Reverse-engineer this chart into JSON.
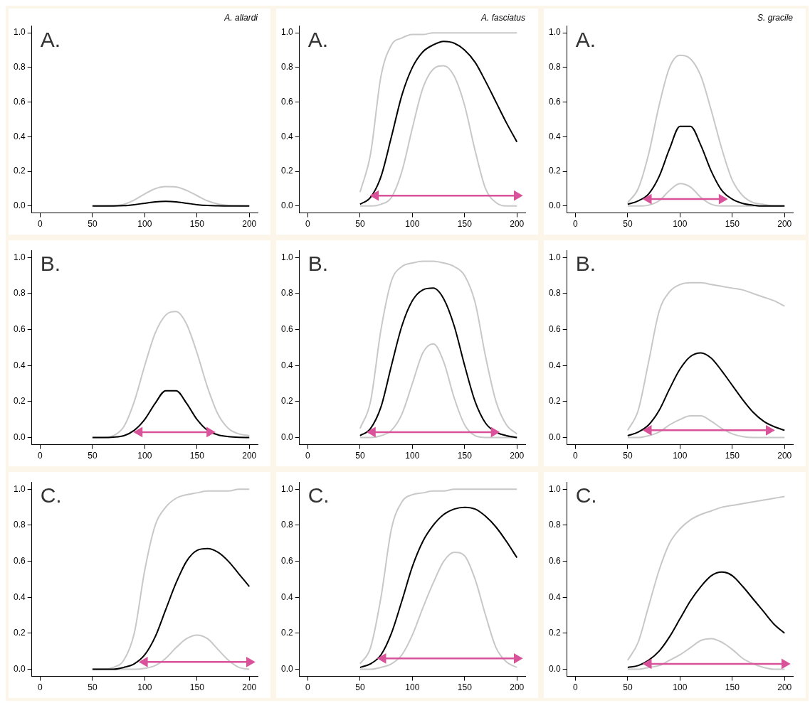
{
  "chart_data": [
    {
      "type": "line",
      "title": "A. allardi",
      "annotations": [
        "A."
      ],
      "x": [
        50,
        60,
        70,
        80,
        90,
        100,
        110,
        120,
        130,
        140,
        150,
        160,
        170,
        180,
        190,
        200
      ],
      "xlim": [
        -8,
        208
      ],
      "ylim": [
        -0.04,
        1.04
      ],
      "xticks": [
        0,
        50,
        100,
        150,
        200
      ],
      "yticks": [
        {
          "value": 0,
          "label": "0.0"
        },
        {
          "value": 0.2,
          "label": "0.2"
        },
        {
          "value": 0.4,
          "label": "0.4"
        },
        {
          "value": 0.6,
          "label": "0.6"
        },
        {
          "value": 0.8,
          "label": "0.8"
        },
        {
          "value": 1,
          "label": "1.0"
        }
      ],
      "marker": "none",
      "series": [
        {
          "color": "#c8c8c8",
          "values": [
            0,
            0,
            0.002,
            0.01,
            0.035,
            0.07,
            0.1,
            0.112,
            0.11,
            0.09,
            0.06,
            0.03,
            0.012,
            0.004,
            0.001,
            0
          ]
        },
        {
          "color": "#000000",
          "values": [
            0,
            0,
            0,
            0.002,
            0.008,
            0.016,
            0.024,
            0.027,
            0.024,
            0.016,
            0.008,
            0.003,
            0.001,
            0,
            0,
            0
          ]
        }
      ]
    },
    {
      "type": "line",
      "title": "A. fasciatus",
      "annotations": [
        "A."
      ],
      "x": [
        50,
        60,
        70,
        80,
        90,
        100,
        110,
        120,
        130,
        140,
        150,
        160,
        170,
        180,
        190,
        200
      ],
      "xlim": [
        -8,
        208
      ],
      "ylim": [
        -0.04,
        1.04
      ],
      "xticks": [
        0,
        50,
        100,
        150,
        200
      ],
      "yticks": [
        {
          "value": 0,
          "label": "0.0"
        },
        {
          "value": 0.2,
          "label": "0.2"
        },
        {
          "value": 0.4,
          "label": "0.4"
        },
        {
          "value": 0.6,
          "label": "0.6"
        },
        {
          "value": 0.8,
          "label": "0.8"
        },
        {
          "value": 1,
          "label": "1.0"
        }
      ],
      "marker": "none",
      "series": [
        {
          "color": "#c8c8c8",
          "values": [
            0.08,
            0.3,
            0.75,
            0.93,
            0.97,
            0.99,
            0.99,
            1,
            1,
            1,
            1,
            1,
            1,
            1,
            1,
            1
          ]
        },
        {
          "color": "#c8c8c8",
          "values": [
            0,
            0,
            0.01,
            0.05,
            0.2,
            0.45,
            0.68,
            0.79,
            0.81,
            0.75,
            0.58,
            0.32,
            0.1,
            0.02,
            0,
            0
          ]
        },
        {
          "color": "#000000",
          "values": [
            0.01,
            0.05,
            0.17,
            0.4,
            0.64,
            0.8,
            0.89,
            0.93,
            0.95,
            0.94,
            0.9,
            0.83,
            0.72,
            0.6,
            0.48,
            0.37
          ]
        },
        {
          "color": "#d9539a",
          "marker": "triangle",
          "x": [
            65,
            200
          ],
          "values": [
            0.06,
            0.06
          ]
        }
      ]
    },
    {
      "type": "line",
      "title": "S. gracile",
      "annotations": [
        "A."
      ],
      "x": [
        50,
        60,
        70,
        80,
        90,
        100,
        110,
        120,
        130,
        140,
        150,
        160,
        170,
        180,
        190,
        200
      ],
      "xlim": [
        -8,
        208
      ],
      "ylim": [
        -0.04,
        1.04
      ],
      "xticks": [
        0,
        50,
        100,
        150,
        200
      ],
      "yticks": [
        {
          "value": 0,
          "label": "0.0"
        },
        {
          "value": 0.2,
          "label": "0.2"
        },
        {
          "value": 0.4,
          "label": "0.4"
        },
        {
          "value": 0.6,
          "label": "0.6"
        },
        {
          "value": 0.8,
          "label": "0.8"
        },
        {
          "value": 1,
          "label": "1.0"
        }
      ],
      "marker": "none",
      "series": [
        {
          "color": "#c8c8c8",
          "values": [
            0.02,
            0.1,
            0.3,
            0.58,
            0.8,
            0.87,
            0.85,
            0.75,
            0.55,
            0.33,
            0.15,
            0.06,
            0.02,
            0.01,
            0,
            0
          ]
        },
        {
          "color": "#c8c8c8",
          "values": [
            0,
            0,
            0.005,
            0.03,
            0.09,
            0.13,
            0.11,
            0.05,
            0.01,
            0,
            0,
            0,
            0,
            0,
            0,
            0
          ]
        },
        {
          "color": "#000000",
          "values": [
            0.01,
            0.03,
            0.07,
            0.17,
            0.33,
            0.46,
            0.46,
            0.35,
            0.2,
            0.09,
            0.04,
            0.015,
            0.005,
            0,
            0,
            0
          ]
        },
        {
          "color": "#d9539a",
          "marker": "triangle",
          "x": [
            70,
            140
          ],
          "values": [
            0.04,
            0.04
          ]
        }
      ]
    },
    {
      "type": "line",
      "annotations": [
        "B."
      ],
      "x": [
        50,
        60,
        70,
        80,
        90,
        100,
        110,
        120,
        130,
        140,
        150,
        160,
        170,
        180,
        190,
        200
      ],
      "xlim": [
        -8,
        208
      ],
      "ylim": [
        -0.04,
        1.04
      ],
      "xticks": [
        0,
        50,
        100,
        150,
        200
      ],
      "yticks": [
        {
          "value": 0,
          "label": "0.0"
        },
        {
          "value": 0.2,
          "label": "0.2"
        },
        {
          "value": 0.4,
          "label": "0.4"
        },
        {
          "value": 0.6,
          "label": "0.6"
        },
        {
          "value": 0.8,
          "label": "0.8"
        },
        {
          "value": 1,
          "label": "1.0"
        }
      ],
      "marker": "none",
      "series": [
        {
          "color": "#c8c8c8",
          "values": [
            0,
            0,
            0.01,
            0.06,
            0.2,
            0.4,
            0.58,
            0.68,
            0.7,
            0.63,
            0.47,
            0.28,
            0.13,
            0.05,
            0.02,
            0.01
          ]
        },
        {
          "color": "#000000",
          "values": [
            0,
            0,
            0.002,
            0.01,
            0.04,
            0.1,
            0.19,
            0.26,
            0.26,
            0.19,
            0.1,
            0.04,
            0.015,
            0.005,
            0.001,
            0
          ]
        },
        {
          "color": "#d9539a",
          "marker": "triangle",
          "x": [
            95,
            162
          ],
          "values": [
            0.03,
            0.03
          ]
        }
      ]
    },
    {
      "type": "line",
      "annotations": [
        "B."
      ],
      "x": [
        50,
        60,
        70,
        80,
        90,
        100,
        110,
        120,
        130,
        140,
        150,
        160,
        170,
        180,
        190,
        200
      ],
      "xlim": [
        -8,
        208
      ],
      "ylim": [
        -0.04,
        1.04
      ],
      "xticks": [
        0,
        50,
        100,
        150,
        200
      ],
      "yticks": [
        {
          "value": 0,
          "label": "0.0"
        },
        {
          "value": 0.2,
          "label": "0.2"
        },
        {
          "value": 0.4,
          "label": "0.4"
        },
        {
          "value": 0.6,
          "label": "0.6"
        },
        {
          "value": 0.8,
          "label": "0.8"
        },
        {
          "value": 1,
          "label": "1.0"
        }
      ],
      "marker": "none",
      "series": [
        {
          "color": "#c8c8c8",
          "values": [
            0.05,
            0.2,
            0.6,
            0.87,
            0.95,
            0.97,
            0.98,
            0.98,
            0.97,
            0.95,
            0.9,
            0.75,
            0.45,
            0.2,
            0.07,
            0.02
          ]
        },
        {
          "color": "#c8c8c8",
          "values": [
            0,
            0,
            0.01,
            0.04,
            0.13,
            0.3,
            0.47,
            0.52,
            0.42,
            0.22,
            0.07,
            0.01,
            0,
            0,
            0,
            0
          ]
        },
        {
          "color": "#000000",
          "values": [
            0.01,
            0.05,
            0.17,
            0.4,
            0.62,
            0.76,
            0.82,
            0.83,
            0.77,
            0.62,
            0.4,
            0.2,
            0.08,
            0.03,
            0.01,
            0
          ]
        },
        {
          "color": "#d9539a",
          "marker": "triangle",
          "x": [
            62,
            178
          ],
          "values": [
            0.03,
            0.03
          ]
        }
      ]
    },
    {
      "type": "line",
      "annotations": [
        "B."
      ],
      "x": [
        50,
        60,
        70,
        80,
        90,
        100,
        110,
        120,
        130,
        140,
        150,
        160,
        170,
        180,
        190,
        200
      ],
      "xlim": [
        -8,
        208
      ],
      "ylim": [
        -0.04,
        1.04
      ],
      "xticks": [
        0,
        50,
        100,
        150,
        200
      ],
      "yticks": [
        {
          "value": 0,
          "label": "0.0"
        },
        {
          "value": 0.2,
          "label": "0.2"
        },
        {
          "value": 0.4,
          "label": "0.4"
        },
        {
          "value": 0.6,
          "label": "0.6"
        },
        {
          "value": 0.8,
          "label": "0.8"
        },
        {
          "value": 1,
          "label": "1.0"
        }
      ],
      "marker": "none",
      "series": [
        {
          "color": "#c8c8c8",
          "values": [
            0.04,
            0.15,
            0.42,
            0.7,
            0.81,
            0.85,
            0.86,
            0.86,
            0.85,
            0.84,
            0.83,
            0.82,
            0.8,
            0.78,
            0.76,
            0.73
          ]
        },
        {
          "color": "#c8c8c8",
          "values": [
            0,
            0,
            0.01,
            0.03,
            0.07,
            0.1,
            0.12,
            0.12,
            0.09,
            0.05,
            0.02,
            0.005,
            0,
            0,
            0,
            0
          ]
        },
        {
          "color": "#000000",
          "values": [
            0.01,
            0.03,
            0.07,
            0.15,
            0.27,
            0.38,
            0.45,
            0.47,
            0.44,
            0.37,
            0.29,
            0.21,
            0.14,
            0.09,
            0.06,
            0.04
          ]
        },
        {
          "color": "#d9539a",
          "marker": "triangle",
          "x": [
            70,
            185
          ],
          "values": [
            0.04,
            0.04
          ]
        }
      ]
    },
    {
      "type": "line",
      "annotations": [
        "C."
      ],
      "x": [
        50,
        60,
        70,
        80,
        90,
        100,
        110,
        120,
        130,
        140,
        150,
        160,
        170,
        180,
        190,
        200
      ],
      "xlim": [
        -8,
        208
      ],
      "ylim": [
        -0.04,
        1.04
      ],
      "xticks": [
        0,
        50,
        100,
        150,
        200
      ],
      "yticks": [
        {
          "value": 0,
          "label": "0.0"
        },
        {
          "value": 0.2,
          "label": "0.2"
        },
        {
          "value": 0.4,
          "label": "0.4"
        },
        {
          "value": 0.6,
          "label": "0.6"
        },
        {
          "value": 0.8,
          "label": "0.8"
        },
        {
          "value": 1,
          "label": "1.0"
        }
      ],
      "marker": "none",
      "series": [
        {
          "color": "#c8c8c8",
          "values": [
            0,
            0,
            0.01,
            0.05,
            0.2,
            0.55,
            0.8,
            0.9,
            0.95,
            0.97,
            0.98,
            0.99,
            0.99,
            0.99,
            1,
            1
          ]
        },
        {
          "color": "#c8c8c8",
          "values": [
            0,
            0,
            0,
            0,
            0,
            0.005,
            0.02,
            0.06,
            0.12,
            0.17,
            0.19,
            0.17,
            0.11,
            0.05,
            0.01,
            0
          ]
        },
        {
          "color": "#000000",
          "values": [
            0,
            0,
            0,
            0.01,
            0.03,
            0.08,
            0.18,
            0.33,
            0.48,
            0.6,
            0.66,
            0.67,
            0.65,
            0.6,
            0.53,
            0.46
          ]
        },
        {
          "color": "#d9539a",
          "marker": "triangle",
          "x": [
            100,
            200
          ],
          "values": [
            0.04,
            0.04
          ]
        }
      ]
    },
    {
      "type": "line",
      "annotations": [
        "C."
      ],
      "x": [
        50,
        60,
        70,
        80,
        90,
        100,
        110,
        120,
        130,
        140,
        150,
        160,
        170,
        180,
        190,
        200
      ],
      "xlim": [
        -8,
        208
      ],
      "ylim": [
        -0.04,
        1.04
      ],
      "xticks": [
        0,
        50,
        100,
        150,
        200
      ],
      "yticks": [
        {
          "value": 0,
          "label": "0.0"
        },
        {
          "value": 0.2,
          "label": "0.2"
        },
        {
          "value": 0.4,
          "label": "0.4"
        },
        {
          "value": 0.6,
          "label": "0.6"
        },
        {
          "value": 0.8,
          "label": "0.8"
        },
        {
          "value": 1,
          "label": "1.0"
        }
      ],
      "marker": "none",
      "series": [
        {
          "color": "#c8c8c8",
          "values": [
            0.03,
            0.12,
            0.4,
            0.78,
            0.93,
            0.97,
            0.98,
            0.99,
            0.99,
            1,
            1,
            1,
            1,
            1,
            1,
            1
          ]
        },
        {
          "color": "#c8c8c8",
          "values": [
            0,
            0,
            0.01,
            0.03,
            0.08,
            0.19,
            0.34,
            0.48,
            0.6,
            0.65,
            0.63,
            0.5,
            0.3,
            0.12,
            0.04,
            0.01
          ]
        },
        {
          "color": "#000000",
          "values": [
            0.01,
            0.03,
            0.08,
            0.2,
            0.38,
            0.57,
            0.71,
            0.8,
            0.86,
            0.89,
            0.9,
            0.89,
            0.85,
            0.79,
            0.71,
            0.62
          ]
        },
        {
          "color": "#d9539a",
          "marker": "triangle",
          "x": [
            72,
            200
          ],
          "values": [
            0.06,
            0.06
          ]
        }
      ]
    },
    {
      "type": "line",
      "annotations": [
        "C."
      ],
      "x": [
        50,
        60,
        70,
        80,
        90,
        100,
        110,
        120,
        130,
        140,
        150,
        160,
        170,
        180,
        190,
        200
      ],
      "xlim": [
        -8,
        208
      ],
      "ylim": [
        -0.04,
        1.04
      ],
      "xticks": [
        0,
        50,
        100,
        150,
        200
      ],
      "yticks": [
        {
          "value": 0,
          "label": "0.0"
        },
        {
          "value": 0.2,
          "label": "0.2"
        },
        {
          "value": 0.4,
          "label": "0.4"
        },
        {
          "value": 0.6,
          "label": "0.6"
        },
        {
          "value": 0.8,
          "label": "0.8"
        },
        {
          "value": 1,
          "label": "1.0"
        }
      ],
      "marker": "none",
      "series": [
        {
          "color": "#c8c8c8",
          "values": [
            0.05,
            0.15,
            0.35,
            0.55,
            0.7,
            0.78,
            0.83,
            0.86,
            0.88,
            0.9,
            0.91,
            0.92,
            0.93,
            0.94,
            0.95,
            0.96
          ]
        },
        {
          "color": "#c8c8c8",
          "values": [
            0,
            0,
            0.01,
            0.02,
            0.05,
            0.08,
            0.12,
            0.16,
            0.17,
            0.15,
            0.11,
            0.06,
            0.03,
            0.01,
            0,
            0
          ]
        },
        {
          "color": "#000000",
          "values": [
            0.01,
            0.02,
            0.05,
            0.1,
            0.18,
            0.28,
            0.38,
            0.46,
            0.52,
            0.54,
            0.52,
            0.46,
            0.39,
            0.32,
            0.25,
            0.2
          ]
        },
        {
          "color": "#d9539a",
          "marker": "triangle",
          "x": [
            70,
            200
          ],
          "values": [
            0.03,
            0.03
          ]
        }
      ]
    }
  ]
}
